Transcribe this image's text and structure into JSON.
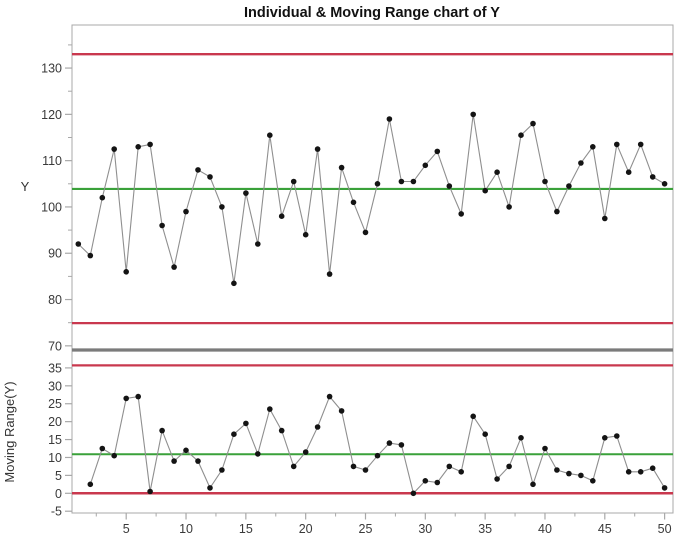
{
  "title": "Individual & Moving Range chart of Y",
  "colors": {
    "control_limit": "#c9384e",
    "center_line": "#3aa13a",
    "panel_divider": "#7b7b7b",
    "series_line": "#8f8f8f",
    "marker": "#141414",
    "axis_line": "#a8a8a8",
    "tick_label": "#3a3a3a"
  },
  "chart_data": [
    {
      "type": "line",
      "name": "Individuals",
      "ylabel": "Y",
      "marker": "filled-circle",
      "grid": false,
      "x": [
        1,
        2,
        3,
        4,
        5,
        6,
        7,
        8,
        9,
        10,
        11,
        12,
        13,
        14,
        15,
        16,
        17,
        18,
        19,
        20,
        21,
        22,
        23,
        24,
        25,
        26,
        27,
        28,
        29,
        30,
        31,
        32,
        33,
        34,
        35,
        36,
        37,
        38,
        39,
        40,
        41,
        42,
        43,
        44,
        45,
        46,
        47,
        48,
        49,
        50
      ],
      "values": [
        92,
        89.5,
        102,
        112.5,
        86,
        113,
        113.5,
        96,
        87,
        99,
        108,
        106.5,
        100,
        83.5,
        103,
        92,
        115.5,
        98,
        105.5,
        94,
        112.5,
        85.5,
        108.5,
        101,
        94.5,
        105,
        119,
        105.5,
        105.5,
        109,
        112,
        104.5,
        98.5,
        120,
        103.5,
        107.5,
        100,
        115.5,
        118,
        105.5,
        99,
        104.5,
        109.5,
        113,
        97.5,
        113.5,
        107.5,
        113.5,
        106.5,
        105
      ],
      "center_line": 103.9,
      "ucl": 133.0,
      "lcl": 74.9,
      "ylim": [
        69.1,
        139.3
      ],
      "yticks_major": [
        70,
        80,
        90,
        100,
        110,
        120,
        130
      ],
      "yticks_minor": [
        75,
        85,
        95,
        105,
        115,
        125,
        135
      ]
    },
    {
      "type": "line",
      "name": "Moving Range",
      "ylabel": "Moving Range(Y)",
      "marker": "filled-circle",
      "grid": false,
      "x": [
        2,
        3,
        4,
        5,
        6,
        7,
        8,
        9,
        10,
        11,
        12,
        13,
        14,
        15,
        16,
        17,
        18,
        19,
        20,
        21,
        22,
        23,
        24,
        25,
        26,
        27,
        28,
        29,
        30,
        31,
        32,
        33,
        34,
        35,
        36,
        37,
        38,
        39,
        40,
        41,
        42,
        43,
        44,
        45,
        46,
        47,
        48,
        49,
        50
      ],
      "values": [
        2.5,
        12.5,
        10.5,
        26.5,
        27,
        0.5,
        17.5,
        9,
        12,
        9,
        1.5,
        6.5,
        16.5,
        19.5,
        11,
        23.5,
        17.5,
        7.5,
        11.5,
        18.5,
        27,
        23,
        7.5,
        6.5,
        10.5,
        14,
        13.5,
        0,
        3.5,
        3,
        7.5,
        6,
        21.5,
        16.5,
        4,
        7.5,
        15.5,
        2.5,
        12.5,
        6.5,
        5.5,
        5,
        3.5,
        15.5,
        16,
        6,
        6,
        7,
        1.5
      ],
      "center_line": 10.9,
      "ucl": 35.7,
      "lcl": 0,
      "ylim": [
        -5.5,
        40.0
      ],
      "yticks_major": [
        -5,
        0,
        5,
        10,
        15,
        20,
        25,
        30,
        35
      ],
      "yticks_minor": []
    }
  ],
  "x_axis": {
    "xlim": [
      0.47,
      50.7
    ],
    "ticks_major": [
      5,
      10,
      15,
      20,
      25,
      30,
      35,
      40,
      45,
      50
    ],
    "ticks_minor": [
      2.5,
      7.5,
      12.5,
      17.5,
      22.5,
      27.5,
      32.5,
      37.5,
      42.5,
      47.5
    ],
    "tick_labels": [
      "5",
      "10",
      "15",
      "20",
      "25",
      "30",
      "35",
      "40",
      "45",
      "50"
    ]
  }
}
